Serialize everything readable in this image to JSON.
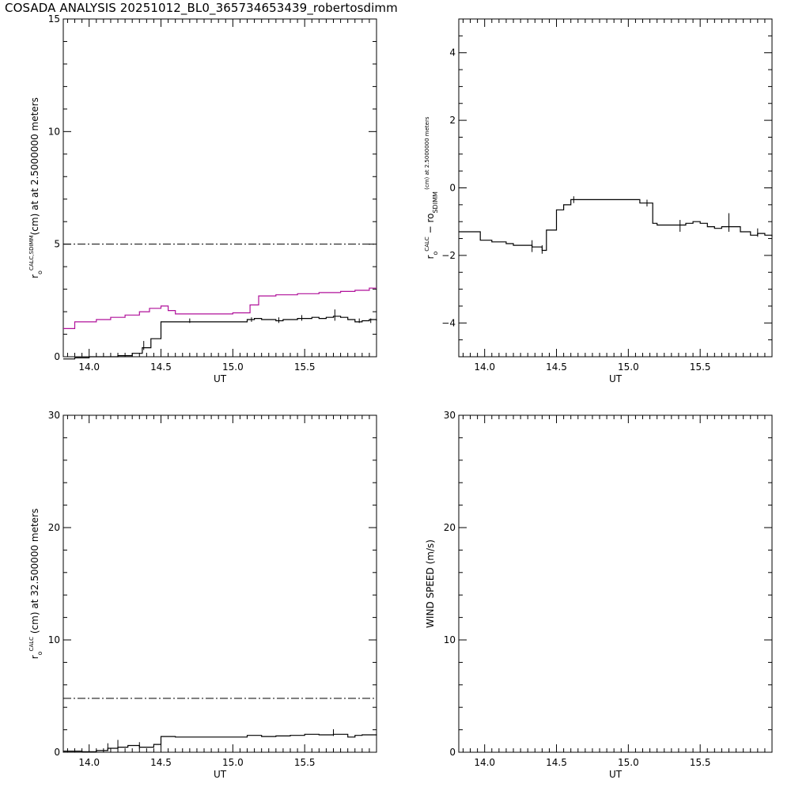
{
  "page_title": "COSADA ANALYSIS 20251012_BL0_365734653439_robertosdimm",
  "colors": {
    "axis": "#000000",
    "black_series": "#000000",
    "magenta_series": "#b0109a",
    "background": "#ffffff"
  },
  "chart_data": [
    {
      "type": "line",
      "id": "p1",
      "xlabel": "UT",
      "ylabel_parts": [
        "r",
        "o",
        "CALC,SDIMM",
        "(cm) at  at 2.5000000 meters"
      ],
      "xlim": [
        13.82,
        16.0
      ],
      "ylim": [
        0,
        15
      ],
      "x_ticks": [
        14.0,
        14.5,
        15.0,
        15.5
      ],
      "x_tick_labels": [
        "14.0",
        "14.5",
        "15.0",
        "15.5"
      ],
      "y_ticks": [
        0,
        5,
        10,
        15
      ],
      "y_tick_labels": [
        "0",
        "5",
        "10",
        "15"
      ],
      "hlines": [
        {
          "y": 5.0,
          "style": "dashdot"
        }
      ],
      "series": [
        {
          "color": "#b0109a",
          "step": true,
          "x": [
            13.82,
            13.9,
            14.05,
            14.15,
            14.25,
            14.35,
            14.42,
            14.5,
            14.55,
            14.6,
            15.0,
            15.12,
            15.18,
            15.3,
            15.45,
            15.6,
            15.75,
            15.85,
            15.95,
            16.0
          ],
          "y": [
            1.25,
            1.55,
            1.65,
            1.75,
            1.85,
            2.0,
            2.15,
            2.25,
            2.05,
            1.9,
            1.95,
            2.3,
            2.7,
            2.75,
            2.8,
            2.85,
            2.9,
            2.95,
            3.05,
            3.05
          ]
        },
        {
          "color": "#000000",
          "step": true,
          "x": [
            13.82,
            13.9,
            14.0,
            14.1,
            14.2,
            14.3,
            14.37,
            14.43,
            14.5,
            14.6,
            15.0,
            15.1,
            15.15,
            15.2,
            15.3,
            15.35,
            15.45,
            15.55,
            15.6,
            15.65,
            15.7,
            15.75,
            15.8,
            15.85,
            15.9,
            15.95,
            16.0
          ],
          "y": [
            -0.1,
            -0.05,
            0.0,
            0.0,
            0.05,
            0.15,
            0.4,
            0.8,
            1.55,
            1.55,
            1.55,
            1.65,
            1.7,
            1.65,
            1.6,
            1.65,
            1.7,
            1.75,
            1.7,
            1.75,
            1.8,
            1.75,
            1.65,
            1.55,
            1.6,
            1.65,
            1.6
          ]
        }
      ],
      "error_bars": [
        {
          "x": 14.38,
          "y0": 0.3,
          "y1": 0.7
        },
        {
          "x": 14.7,
          "y0": 1.5,
          "y1": 1.7
        },
        {
          "x": 15.13,
          "y0": 1.55,
          "y1": 1.75
        },
        {
          "x": 15.32,
          "y0": 1.5,
          "y1": 1.75
        },
        {
          "x": 15.48,
          "y0": 1.6,
          "y1": 1.85
        },
        {
          "x": 15.71,
          "y0": 1.6,
          "y1": 2.1
        },
        {
          "x": 15.88,
          "y0": 1.5,
          "y1": 1.7
        },
        {
          "x": 15.96,
          "y0": 1.5,
          "y1": 1.7
        }
      ]
    },
    {
      "type": "line",
      "id": "p2",
      "xlabel": "UT",
      "ylabel_parts": [
        "r",
        "o",
        "CALC",
        "  −  r",
        "o",
        "SDIMM",
        " (cm) at 2.5000000 meters"
      ],
      "xlim": [
        13.82,
        16.0
      ],
      "ylim": [
        -5,
        5
      ],
      "x_ticks": [
        14.0,
        14.5,
        15.0,
        15.5
      ],
      "x_tick_labels": [
        "14.0",
        "14.5",
        "15.0",
        "15.5"
      ],
      "y_ticks": [
        -4,
        -2,
        0,
        2,
        4
      ],
      "y_tick_labels": [
        "−4",
        "−2",
        "0",
        "2",
        "4"
      ],
      "hlines": [],
      "series": [
        {
          "color": "#000000",
          "step": true,
          "x": [
            13.82,
            13.9,
            13.97,
            14.05,
            14.15,
            14.2,
            14.25,
            14.33,
            14.4,
            14.43,
            14.5,
            14.55,
            14.6,
            14.7,
            15.0,
            15.08,
            15.17,
            15.2,
            15.3,
            15.35,
            15.4,
            15.45,
            15.5,
            15.55,
            15.6,
            15.65,
            15.72,
            15.78,
            15.85,
            15.9,
            15.95,
            16.0
          ],
          "y": [
            -1.3,
            -1.3,
            -1.55,
            -1.6,
            -1.65,
            -1.7,
            -1.7,
            -1.75,
            -1.85,
            -1.25,
            -0.65,
            -0.5,
            -0.35,
            -0.35,
            -0.35,
            -0.45,
            -1.05,
            -1.1,
            -1.1,
            -1.1,
            -1.05,
            -1.0,
            -1.05,
            -1.15,
            -1.2,
            -1.15,
            -1.15,
            -1.3,
            -1.4,
            -1.35,
            -1.4,
            -1.45
          ]
        }
      ],
      "error_bars": [
        {
          "x": 14.33,
          "y0": -1.9,
          "y1": -1.55
        },
        {
          "x": 14.4,
          "y0": -1.95,
          "y1": -1.7
        },
        {
          "x": 14.62,
          "y0": -0.45,
          "y1": -0.25
        },
        {
          "x": 15.13,
          "y0": -0.55,
          "y1": -0.35
        },
        {
          "x": 15.36,
          "y0": -1.3,
          "y1": -0.95
        },
        {
          "x": 15.7,
          "y0": -1.3,
          "y1": -0.75
        },
        {
          "x": 15.9,
          "y0": -1.45,
          "y1": -1.2
        }
      ]
    },
    {
      "type": "line",
      "id": "p3",
      "xlabel": "UT",
      "ylabel_parts": [
        "r",
        "o",
        "CALC",
        " (cm) at 32.500000 meters"
      ],
      "xlim": [
        13.82,
        16.0
      ],
      "ylim": [
        0,
        30
      ],
      "x_ticks": [
        14.0,
        14.5,
        15.0,
        15.5
      ],
      "x_tick_labels": [
        "14.0",
        "14.5",
        "15.0",
        "15.5"
      ],
      "y_ticks": [
        0,
        10,
        20,
        30
      ],
      "y_tick_labels": [
        "0",
        "10",
        "20",
        "30"
      ],
      "hlines": [
        {
          "y": 4.8,
          "style": "dashdot"
        }
      ],
      "series": [
        {
          "color": "#000000",
          "step": true,
          "x": [
            13.82,
            13.95,
            14.05,
            14.13,
            14.2,
            14.27,
            14.35,
            14.45,
            14.5,
            14.6,
            15.0,
            15.1,
            15.2,
            15.3,
            15.4,
            15.5,
            15.6,
            15.7,
            15.8,
            15.85,
            15.9,
            15.95,
            16.0
          ],
          "y": [
            0.1,
            0.05,
            0.15,
            0.35,
            0.45,
            0.6,
            0.45,
            0.7,
            1.4,
            1.35,
            1.35,
            1.5,
            1.4,
            1.45,
            1.5,
            1.6,
            1.55,
            1.6,
            1.35,
            1.5,
            1.55,
            1.55,
            1.5
          ]
        }
      ],
      "error_bars": [
        {
          "x": 14.13,
          "y0": 0.2,
          "y1": 0.8
        },
        {
          "x": 14.2,
          "y0": 0.3,
          "y1": 1.1
        },
        {
          "x": 14.35,
          "y0": 0.3,
          "y1": 0.9
        },
        {
          "x": 15.7,
          "y0": 1.45,
          "y1": 2.05
        }
      ]
    },
    {
      "type": "line",
      "id": "p4",
      "xlabel": "UT",
      "ylabel_parts": [
        "WIND SPEED (m/s)"
      ],
      "xlim": [
        13.82,
        16.0
      ],
      "ylim": [
        0,
        30
      ],
      "x_ticks": [
        14.0,
        14.5,
        15.0,
        15.5
      ],
      "x_tick_labels": [
        "14.0",
        "14.5",
        "15.0",
        "15.5"
      ],
      "y_ticks": [
        0,
        10,
        20,
        30
      ],
      "y_tick_labels": [
        "0",
        "10",
        "20",
        "30"
      ],
      "hlines": [],
      "series": [],
      "error_bars": []
    }
  ]
}
